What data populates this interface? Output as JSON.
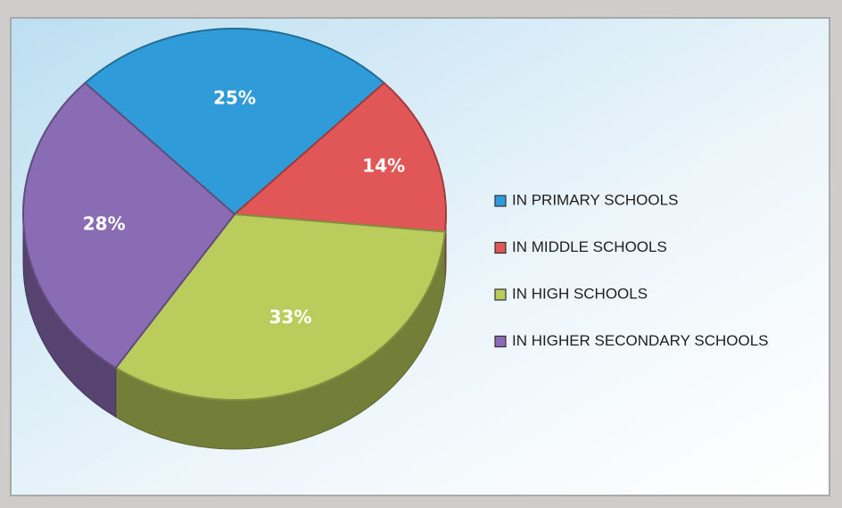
{
  "chart_data": {
    "type": "pie",
    "categories": [
      "IN PRIMARY SCHOOLS",
      "IN MIDDLE SCHOOLS",
      "IN HIGH SCHOOLS",
      "IN HIGHER SECONDARY SCHOOLS"
    ],
    "values": [
      25,
      14,
      33,
      28
    ],
    "value_labels": [
      "25%",
      "14%",
      "33%",
      "28%"
    ],
    "colors": [
      "#2f9bd9",
      "#e15656",
      "#bacd5c",
      "#8a6cb4"
    ],
    "legend": "right"
  }
}
